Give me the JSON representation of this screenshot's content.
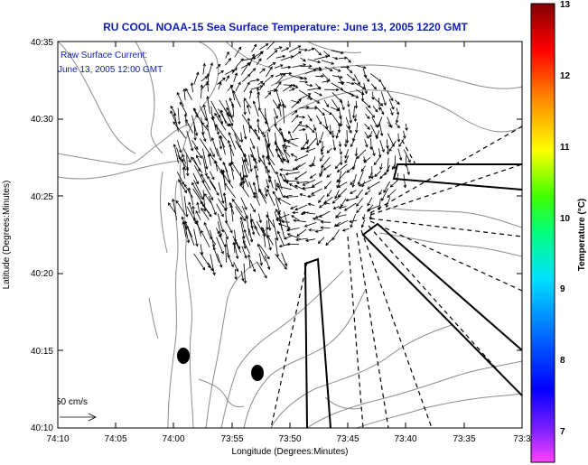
{
  "title": "RU COOL  NOAA-15  Sea Surface Temperature:  June 13, 2005 1220 GMT",
  "note": {
    "line1": "Raw Surface Current:",
    "line2": "June 13, 2005 12:00 GMT"
  },
  "scale": {
    "label": "50 cm/s"
  },
  "axes": {
    "xlabel": "Longitude (Degrees:Minutes)",
    "ylabel": "Latitude (Degrees:Minutes)",
    "x_ticks": [
      "74:10",
      "74:05",
      "74:00",
      "73:55",
      "73:50",
      "73:45",
      "73:40",
      "73:35",
      "73:3"
    ],
    "y_ticks": [
      "40:35",
      "40:30",
      "40:25",
      "40:20",
      "40:15",
      "40:10"
    ]
  },
  "colorbar": {
    "label": "Temperature (°C)",
    "ticks": [
      "13",
      "12",
      "11",
      "10",
      "9",
      "8",
      "7"
    ],
    "range": [
      6.5,
      13.0
    ]
  },
  "colors": {
    "title": "#1020b0",
    "frame": "#000000",
    "contour": "#8c8c8c",
    "vectors": "#000000"
  }
}
